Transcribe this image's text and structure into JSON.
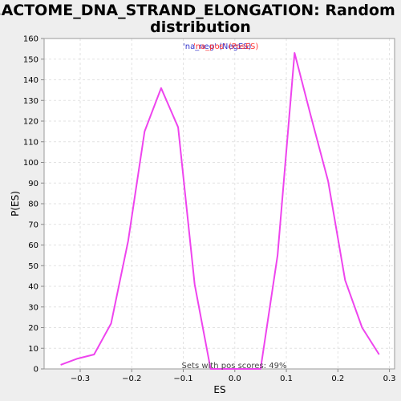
{
  "chart_data": {
    "type": "line",
    "title_line1": "REACTOME_DNA_STRAND_ELONGATION: Random ES",
    "title_line2": "distribution",
    "xlabel": "ES",
    "ylabel": "P(ES)",
    "xlim": [
      -0.37,
      0.31
    ],
    "ylim": [
      0,
      160
    ],
    "xticks": [
      -0.3,
      -0.2,
      -0.1,
      0.0,
      0.1,
      0.2,
      0.3
    ],
    "xtick_labels": [
      "−0.3",
      "−0.2",
      "−0.1",
      "0.0",
      "0.1",
      "0.2",
      "0.3"
    ],
    "yticks": [
      0,
      10,
      20,
      30,
      40,
      50,
      60,
      70,
      80,
      90,
      100,
      110,
      120,
      130,
      140,
      150,
      160
    ],
    "grid": true,
    "legend": {
      "placement": "top-center",
      "entries": [
        {
          "label": "'na_neg' (NegES)",
          "color": "#3333cc"
        },
        {
          "label": "'na_pos' (PosES)",
          "color": "#ff3333"
        }
      ]
    },
    "annotation": "Sets with pos scores: 49%",
    "series": [
      {
        "color": "#ee44ee",
        "x": [
          -0.338,
          -0.305,
          -0.273,
          -0.24,
          -0.207,
          -0.175,
          -0.143,
          -0.11,
          -0.078,
          -0.047,
          -0.015,
          0.018,
          0.05,
          0.083,
          0.116,
          0.148,
          0.181,
          0.214,
          0.247,
          0.28
        ],
        "y": [
          2,
          5,
          7,
          22,
          62,
          115,
          136,
          117,
          41,
          0,
          0,
          0,
          0,
          55,
          153,
          122,
          91,
          43,
          20,
          7
        ]
      }
    ]
  }
}
